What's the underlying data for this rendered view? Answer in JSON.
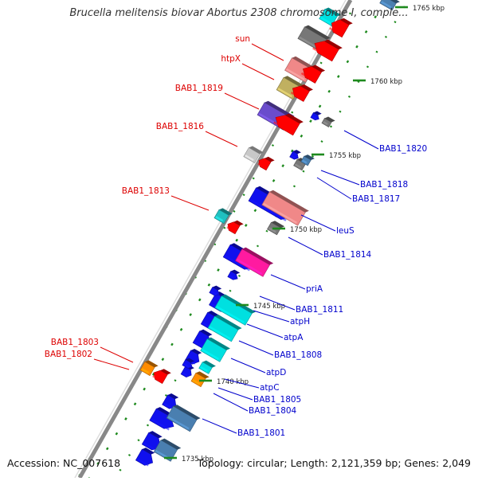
{
  "title": "Brucella melitensis biovar Abortus 2308 chromosome I, comple...",
  "footer": {
    "accession": "Accession: NC_007618",
    "summary": "Topology: circular; Length: 2,121,359 bp; Genes: 2,049"
  },
  "colors": {
    "strand_line": "#888888",
    "forward_label": "#dd0000",
    "reverse_label": "#0000cc",
    "tick_green": "#1e8a1e",
    "red": "#ff0000",
    "blue": "#1010ee",
    "cyan": "#00e0e0",
    "magenta": "#ff1aa0",
    "purple": "#6a4ccc",
    "steelblue": "#4a7fb0",
    "salmon": "#f08888",
    "khaki": "#c0b060",
    "gray": "#777777",
    "lightgray": "#c8c8c8",
    "orange": "#ff8c00",
    "teal": "#20c0c0"
  },
  "scale_ticks": [
    "1735 kbp",
    "1740 kbp",
    "1745 kbp",
    "1750 kbp",
    "1755 kbp",
    "1760 kbp",
    "1765 kbp"
  ],
  "forward_labels": [
    "sun",
    "htpX",
    "BAB1_1819",
    "BAB1_1816",
    "BAB1_1813",
    "BAB1_1803",
    "BAB1_1802"
  ],
  "reverse_labels": [
    "BAB1_1820",
    "BAB1_1818",
    "BAB1_1817",
    "leuS",
    "BAB1_1814",
    "priA",
    "BAB1_1811",
    "atpH",
    "atpA",
    "BAB1_1808",
    "atpD",
    "atpC",
    "BAB1_1805",
    "BAB1_1804",
    "BAB1_1801"
  ]
}
